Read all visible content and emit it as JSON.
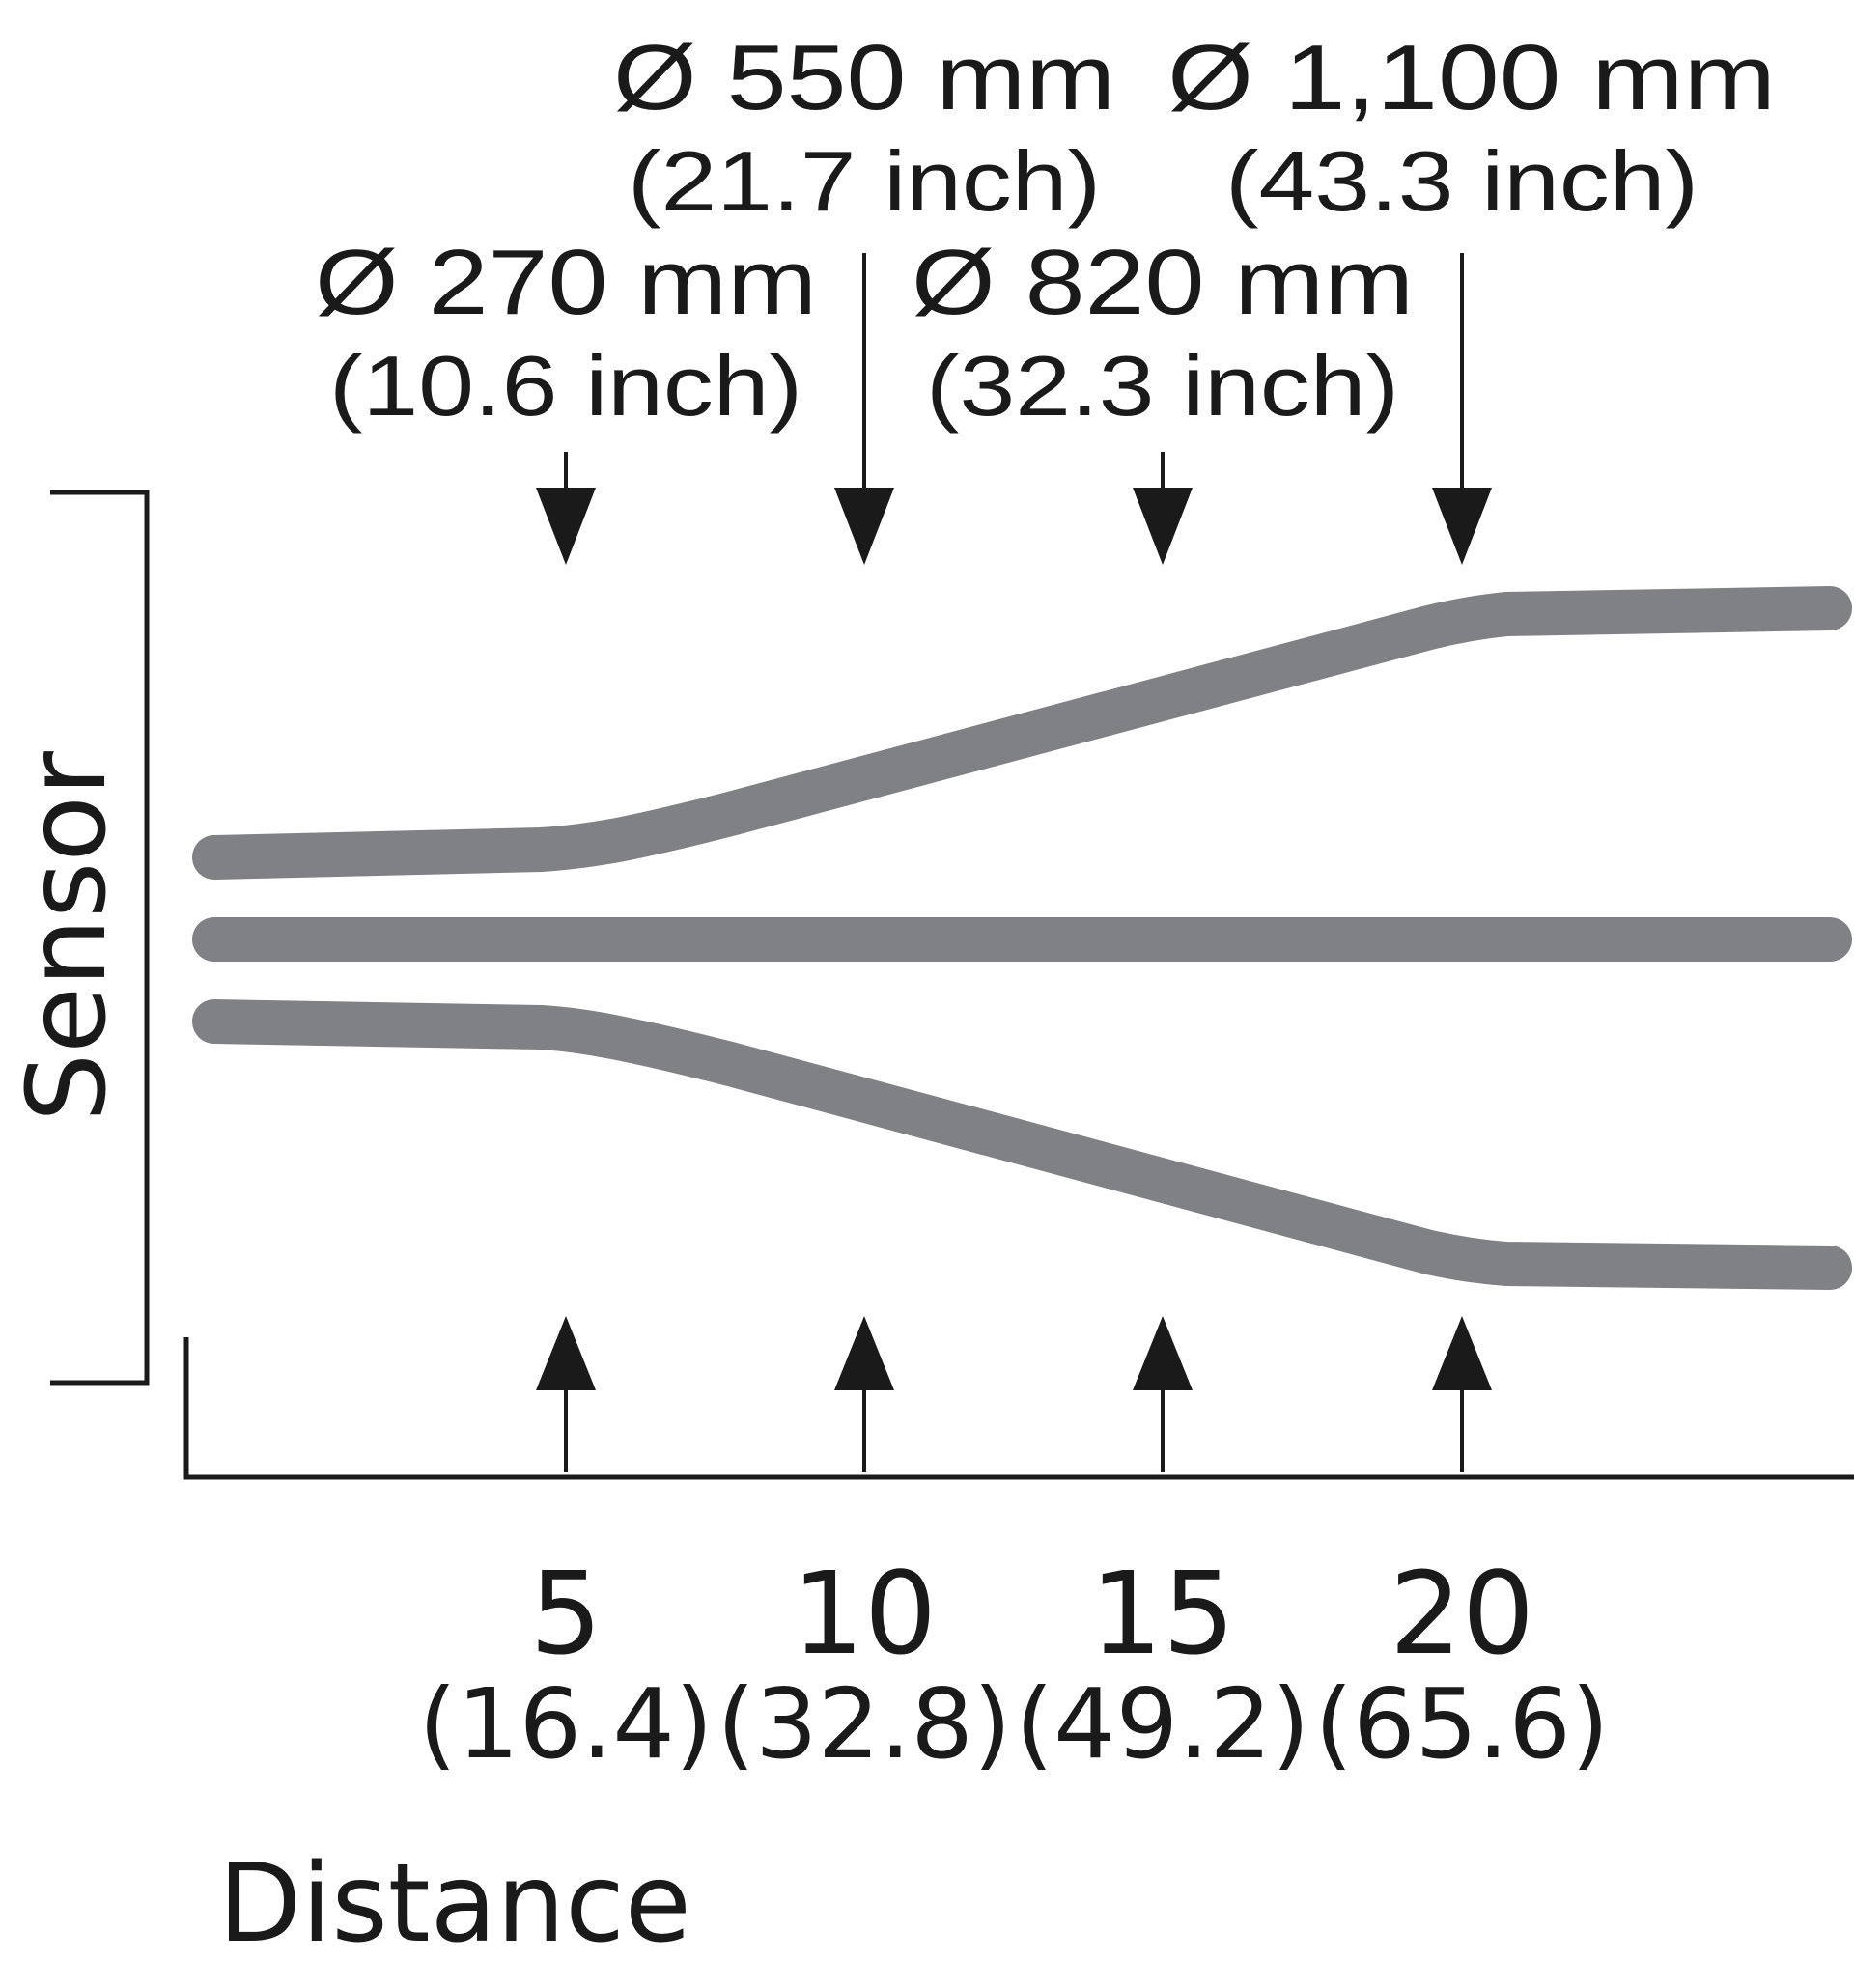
{
  "axes": {
    "vertical_label": "Sensor",
    "horizontal_label": "Distance"
  },
  "colors": {
    "beam": "#808185",
    "ink": "#1a1a1a",
    "background": "#ffffff"
  },
  "markers": [
    {
      "distance": "5",
      "distance_alt": "(16.4)",
      "diameter": "Ø 270 mm",
      "diameter_alt": "(10.6 inch)"
    },
    {
      "distance": "10",
      "distance_alt": "(32.8)",
      "diameter": "Ø 550 mm",
      "diameter_alt": "(21.7 inch)"
    },
    {
      "distance": "15",
      "distance_alt": "(49.2)",
      "diameter": "Ø 820 mm",
      "diameter_alt": "(32.3 inch)"
    },
    {
      "distance": "20",
      "distance_alt": "(65.6)",
      "diameter": "Ø 1,100 mm",
      "diameter_alt": "(43.3 inch)"
    }
  ]
}
